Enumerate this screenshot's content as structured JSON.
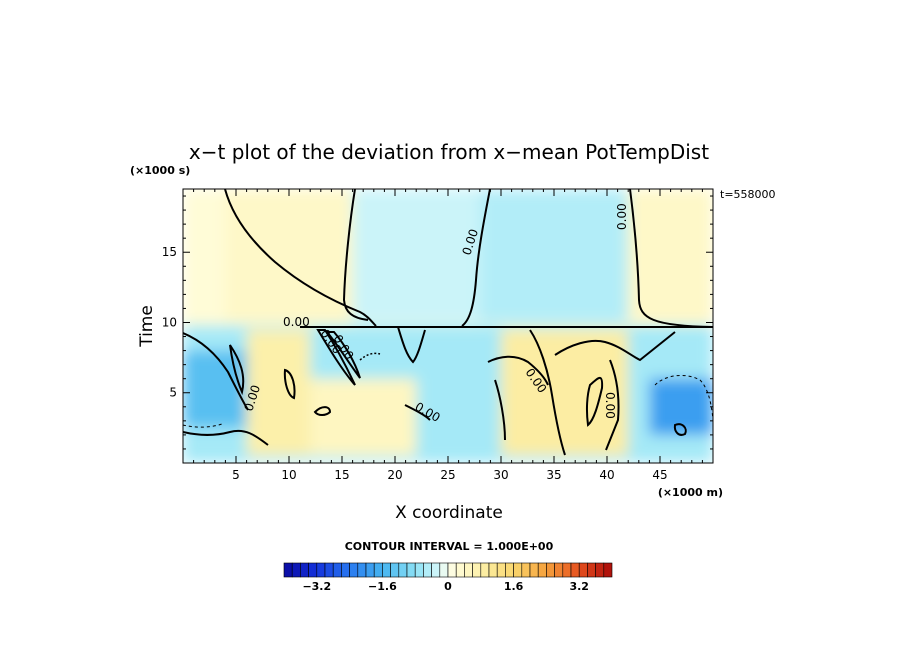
{
  "chart_data": {
    "type": "heatmap",
    "title": "x−t plot of the deviation from x−mean PotTempDist",
    "xlabel": "X coordinate",
    "ylabel": "Time",
    "x_unit": "(×1000 m)",
    "y_unit": "(×1000 s)",
    "time_stamp": "t=558000",
    "xlim": [
      0,
      50
    ],
    "ylim": [
      0,
      19.5
    ],
    "x_ticks": [
      5,
      10,
      15,
      20,
      25,
      30,
      35,
      40,
      45
    ],
    "y_ticks": [
      5,
      10,
      15
    ],
    "contour_interval_text": "CONTOUR INTERVAL = 1.000E+00",
    "contour_labels": [
      "0.00",
      "0.00",
      "0.00",
      "0.00",
      "0.00",
      "0.00",
      "0.00",
      "0.00",
      "0.00"
    ],
    "colorbar": {
      "min": -4.0,
      "max": 4.0,
      "step": 0.2,
      "tick_values": [
        -3.2,
        -1.6,
        0,
        1.6,
        3.2
      ],
      "tick_labels": [
        "−3.2",
        "−1.6",
        "0",
        "1.6",
        "3.2"
      ]
    },
    "field_regions": [
      {
        "x": [
          0,
          50
        ],
        "t": [
          9.8,
          19.5
        ],
        "value": 0.2
      },
      {
        "x": [
          4,
          16
        ],
        "t": [
          10,
          19.5
        ],
        "value": 0.4
      },
      {
        "x": [
          16,
          28
        ],
        "t": [
          10,
          19.5
        ],
        "value": -0.3
      },
      {
        "x": [
          28,
          42
        ],
        "t": [
          10,
          19.5
        ],
        "value": -0.5
      },
      {
        "x": [
          42,
          50
        ],
        "t": [
          10,
          19.5
        ],
        "value": 0.4
      },
      {
        "x": [
          0,
          50
        ],
        "t": [
          0,
          9.8
        ],
        "value": -0.6
      },
      {
        "x": [
          0,
          6
        ],
        "t": [
          2.5,
          8
        ],
        "value": -1.4
      },
      {
        "x": [
          6,
          12
        ],
        "t": [
          0.5,
          9.5
        ],
        "value": 0.8
      },
      {
        "x": [
          12,
          22
        ],
        "t": [
          0.5,
          6
        ],
        "value": 0.5
      },
      {
        "x": [
          30,
          42
        ],
        "t": [
          0.5,
          9.5
        ],
        "value": 0.9
      },
      {
        "x": [
          44,
          50
        ],
        "t": [
          2,
          6
        ],
        "value": -1.9
      }
    ]
  },
  "colors": {
    "contour": "#000000",
    "background": "#ffffff"
  }
}
